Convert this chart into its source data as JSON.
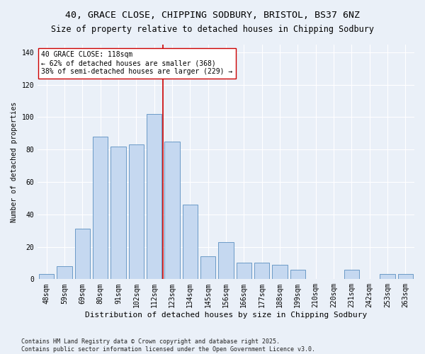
{
  "title1": "40, GRACE CLOSE, CHIPPING SODBURY, BRISTOL, BS37 6NZ",
  "title2": "Size of property relative to detached houses in Chipping Sodbury",
  "xlabel": "Distribution of detached houses by size in Chipping Sodbury",
  "ylabel": "Number of detached properties",
  "categories": [
    "48sqm",
    "59sqm",
    "69sqm",
    "80sqm",
    "91sqm",
    "102sqm",
    "112sqm",
    "123sqm",
    "134sqm",
    "145sqm",
    "156sqm",
    "166sqm",
    "177sqm",
    "188sqm",
    "199sqm",
    "210sqm",
    "220sqm",
    "231sqm",
    "242sqm",
    "253sqm",
    "263sqm"
  ],
  "values": [
    3,
    8,
    31,
    88,
    82,
    83,
    102,
    85,
    46,
    14,
    23,
    10,
    10,
    9,
    6,
    0,
    0,
    6,
    0,
    3,
    3
  ],
  "bar_color": "#c5d8f0",
  "bar_edge_color": "#5a8fc0",
  "vline_color": "#cc0000",
  "annotation_text": "40 GRACE CLOSE: 118sqm\n← 62% of detached houses are smaller (368)\n38% of semi-detached houses are larger (229) →",
  "annotation_box_color": "#ffffff",
  "annotation_box_edge": "#cc0000",
  "footer": "Contains HM Land Registry data © Crown copyright and database right 2025.\nContains public sector information licensed under the Open Government Licence v3.0.",
  "ylim": [
    0,
    145
  ],
  "yticks": [
    0,
    20,
    40,
    60,
    80,
    100,
    120,
    140
  ],
  "bg_color": "#eaf0f8",
  "grid_color": "#ffffff",
  "title_fontsize": 9.5,
  "subtitle_fontsize": 8.5,
  "tick_fontsize": 7,
  "xlabel_fontsize": 8,
  "ylabel_fontsize": 7,
  "footer_fontsize": 6,
  "annot_fontsize": 7
}
